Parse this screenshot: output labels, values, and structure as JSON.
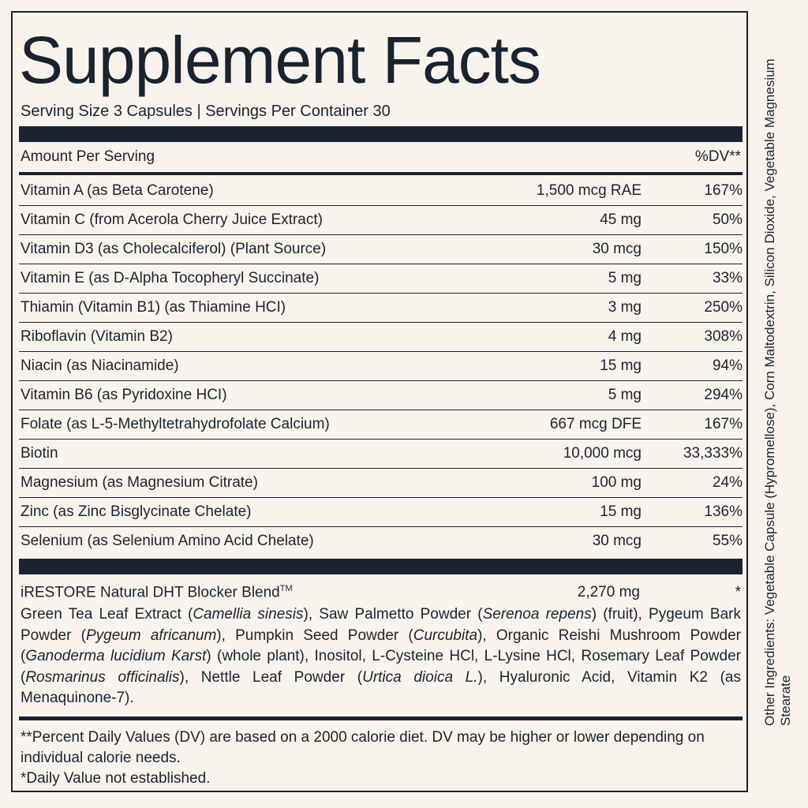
{
  "title": "Supplement Facts",
  "serving": "Serving Size 3 Capsules | Servings Per Container 30",
  "header": {
    "amount_per_serving": "Amount Per Serving",
    "dv": "%DV**"
  },
  "rows": [
    {
      "name": "Vitamin A (as Beta Carotene)",
      "amount": "1,500 mcg RAE",
      "dv": "167%"
    },
    {
      "name": "Vitamin C (from Acerola Cherry Juice Extract)",
      "amount": "45 mg",
      "dv": "50%"
    },
    {
      "name": "Vitamin D3 (as Cholecalciferol) (Plant Source)",
      "amount": "30 mcg",
      "dv": "150%"
    },
    {
      "name": "Vitamin E (as D-Alpha Tocopheryl Succinate)",
      "amount": "5 mg",
      "dv": "33%"
    },
    {
      "name": "Thiamin (Vitamin B1) (as Thiamine HCI)",
      "amount": "3 mg",
      "dv": "250%"
    },
    {
      "name": "Riboflavin (Vitamin B2)",
      "amount": "4 mg",
      "dv": "308%"
    },
    {
      "name": "Niacin (as Niacinamide)",
      "amount": "15 mg",
      "dv": "94%"
    },
    {
      "name": "Vitamin B6 (as Pyridoxine HCI)",
      "amount": "5 mg",
      "dv": "294%"
    },
    {
      "name": "Folate (as L-5-Methyltetrahydrofolate Calcium)",
      "amount": "667 mcg DFE",
      "dv": "167%"
    },
    {
      "name": "Biotin",
      "amount": "10,000 mcg",
      "dv": "33,333%"
    },
    {
      "name": "Magnesium (as Magnesium Citrate)",
      "amount": "100 mg",
      "dv": "24%"
    },
    {
      "name": "Zinc (as Zinc Bisglycinate Chelate)",
      "amount": "15 mg",
      "dv": "136%"
    },
    {
      "name": "Selenium (as Selenium Amino Acid Chelate)",
      "amount": "30 mcg",
      "dv": "55%"
    }
  ],
  "blend": {
    "name": "iRESTORE Natural DHT Blocker Blend",
    "trademark": "TM",
    "amount": "2,270 mg",
    "dv": "*",
    "ingredients": [
      {
        "text": "Green Tea Leaf Extract (",
        "italic": false
      },
      {
        "text": "Camellia sinesis",
        "italic": true
      },
      {
        "text": "), Saw Palmetto Powder (",
        "italic": false
      },
      {
        "text": "Serenoa repens",
        "italic": true
      },
      {
        "text": ") (fruit), Pygeum Bark Powder (",
        "italic": false
      },
      {
        "text": "Pygeum africanum",
        "italic": true
      },
      {
        "text": "), Pumpkin Seed Powder (",
        "italic": false
      },
      {
        "text": "Curcubita",
        "italic": true
      },
      {
        "text": "), Organic Reishi Mushroom Powder (",
        "italic": false
      },
      {
        "text": "Ganoderma lucidium Karst",
        "italic": true
      },
      {
        "text": ") (whole plant), Inositol, L-Cysteine HCl, L-Lysine HCl, Rosemary Leaf Powder (",
        "italic": false
      },
      {
        "text": "Rosmarinus officinalis",
        "italic": true
      },
      {
        "text": "), Nettle Leaf Powder (",
        "italic": false
      },
      {
        "text": "Urtica dioica L.",
        "italic": true
      },
      {
        "text": "), Hyaluronic Acid, Vitamin K2 (as Menaquinone-7).",
        "italic": false
      }
    ]
  },
  "footnotes": [
    "**Percent Daily Values (DV) are based on a 2000 calorie diet. DV may be higher or lower depending on individual calorie needs.",
    "*Daily Value not established."
  ],
  "other_ingredients": "Other Ingredients: Vegetable Capsule (Hypromellose), Corn Maltodextrin, Silicon Dioxide, Vegetable Magnesium Stearate"
}
